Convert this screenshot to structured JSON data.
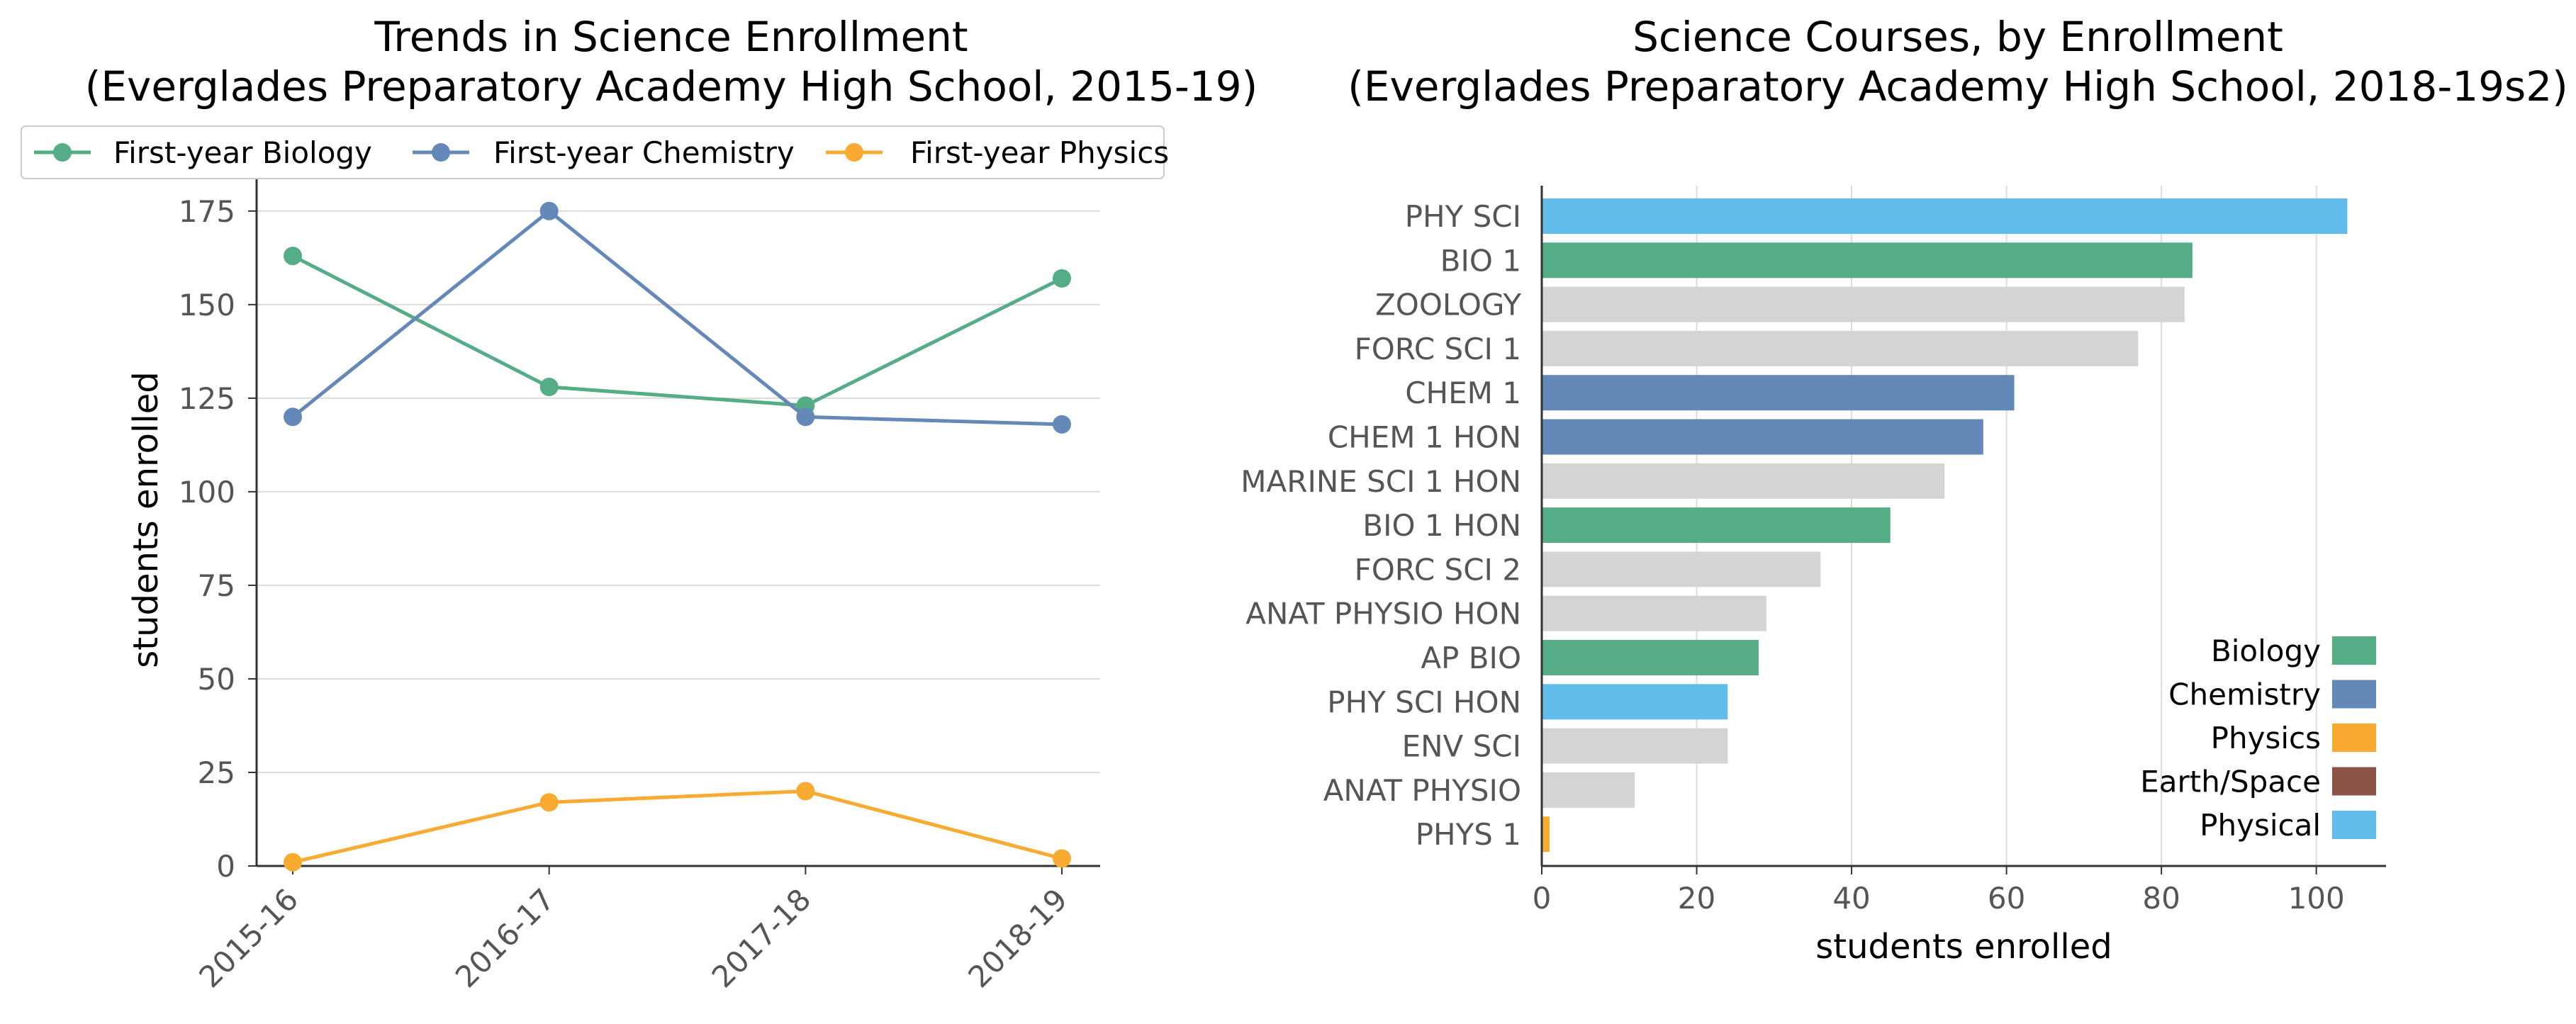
{
  "colors": {
    "Biology": "#55ad86",
    "Chemistry": "#6488b8",
    "Physics": "#f8ab30",
    "Earth/Space": "#8b5447",
    "Physical": "#62bdec",
    "Other": "#d4d4d4",
    "grid": "#dcdcdc",
    "axis": "#333333"
  },
  "chart_data": [
    {
      "type": "line",
      "title": "Trends in Science Enrollment\n(Everglades Preparatory Academy High School, 2015-19)",
      "xlabel": "",
      "ylabel": "students enrolled",
      "categories": [
        "2015-16",
        "2016-17",
        "2017-18",
        "2018-19"
      ],
      "ylim": [
        0,
        185
      ],
      "yticks": [
        0,
        25,
        50,
        75,
        100,
        125,
        150,
        175
      ],
      "grid": "horizontal",
      "legend_position": "top",
      "series": [
        {
          "name": "First-year Biology",
          "color_key": "Biology",
          "values": [
            163,
            128,
            123,
            157
          ]
        },
        {
          "name": "First-year Chemistry",
          "color_key": "Chemistry",
          "values": [
            120,
            175,
            120,
            118
          ]
        },
        {
          "name": "First-year Physics",
          "color_key": "Physics",
          "values": [
            1,
            17,
            20,
            2
          ]
        }
      ]
    },
    {
      "type": "bar",
      "orientation": "horizontal",
      "title": "Science Courses, by Enrollment\n(Everglades Preparatory Academy High School, 2018-19s2)",
      "xlabel": "students enrolled",
      "ylabel": "",
      "xlim": [
        0,
        109
      ],
      "xticks": [
        0,
        20,
        40,
        60,
        80,
        100
      ],
      "grid": "vertical",
      "legend_position": "bottom-right",
      "categories": [
        "PHY SCI",
        "BIO 1",
        "ZOOLOGY",
        "FORC SCI 1",
        "CHEM 1",
        "CHEM 1 HON",
        "MARINE SCI 1 HON",
        "BIO 1 HON",
        "FORC SCI 2",
        "ANAT PHYSIO HON",
        "AP BIO",
        "PHY SCI HON",
        "ENV SCI",
        "ANAT PHYSIO",
        "PHYS 1"
      ],
      "values": [
        104,
        84,
        83,
        77,
        61,
        57,
        52,
        45,
        36,
        29,
        28,
        24,
        24,
        12,
        1
      ],
      "groups": [
        "Physical",
        "Biology",
        "Other",
        "Other",
        "Chemistry",
        "Chemistry",
        "Other",
        "Biology",
        "Other",
        "Other",
        "Biology",
        "Physical",
        "Other",
        "Other",
        "Physics"
      ],
      "legend": [
        "Biology",
        "Chemistry",
        "Physics",
        "Earth/Space",
        "Physical"
      ]
    }
  ]
}
